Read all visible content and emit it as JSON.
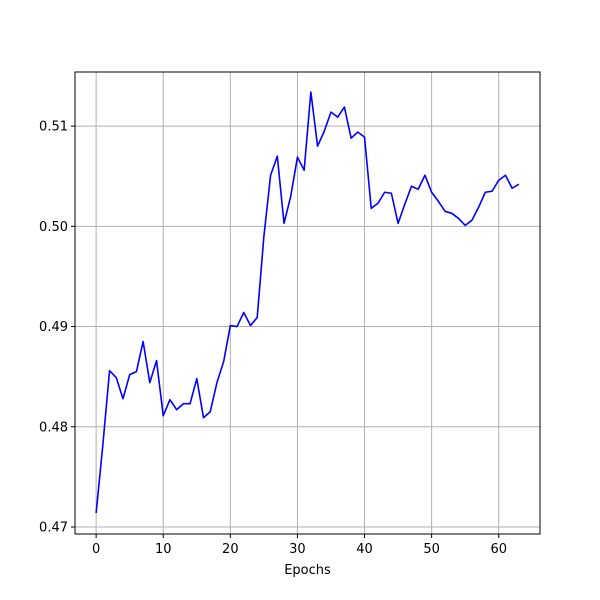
{
  "chart_data": {
    "type": "line",
    "title": "",
    "xlabel": "Epochs",
    "ylabel": "",
    "xlim": [
      -3.15,
      66.15
    ],
    "ylim": [
      0.4693,
      0.5154
    ],
    "xticks": [
      0,
      10,
      20,
      30,
      40,
      50,
      60
    ],
    "xtick_labels": [
      "0",
      "10",
      "20",
      "30",
      "40",
      "50",
      "60"
    ],
    "yticks": [
      0.47,
      0.48,
      0.49,
      0.5,
      0.51
    ],
    "ytick_labels": [
      "0.47",
      "0.48",
      "0.49",
      "0.50",
      "0.51"
    ],
    "grid": true,
    "legend": "none",
    "series": [
      {
        "color": "#0000ff",
        "x": [
          0,
          1,
          2,
          3,
          4,
          5,
          6,
          7,
          8,
          9,
          10,
          11,
          12,
          13,
          14,
          15,
          16,
          17,
          18,
          19,
          20,
          21,
          22,
          23,
          24,
          25,
          26,
          27,
          28,
          29,
          30,
          31,
          32,
          33,
          34,
          35,
          36,
          37,
          38,
          39,
          40,
          41,
          42,
          43,
          44,
          45,
          46,
          47,
          48,
          49,
          50,
          51,
          52,
          53,
          54,
          55,
          56,
          57,
          58,
          59,
          60,
          61,
          62,
          63
        ],
        "y": [
          0.4714,
          0.4782,
          0.4856,
          0.4849,
          0.4828,
          0.4852,
          0.4855,
          0.4885,
          0.4844,
          0.4866,
          0.4811,
          0.4827,
          0.4817,
          0.4823,
          0.4823,
          0.4848,
          0.4809,
          0.4815,
          0.4844,
          0.4865,
          0.4901,
          0.49,
          0.4914,
          0.4901,
          0.4909,
          0.499,
          0.5051,
          0.507,
          0.5003,
          0.503,
          0.5069,
          0.5056,
          0.5134,
          0.508,
          0.5095,
          0.5114,
          0.5109,
          0.5119,
          0.5088,
          0.5094,
          0.5089,
          0.5018,
          0.5023,
          0.5034,
          0.5033,
          0.5003,
          0.5022,
          0.504,
          0.5037,
          0.5051,
          0.5034,
          0.5025,
          0.5015,
          0.5013,
          0.5008,
          0.5001,
          0.5006,
          0.5019,
          0.5034,
          0.5035,
          0.5046,
          0.5051,
          0.5038,
          0.5042
        ]
      }
    ]
  }
}
